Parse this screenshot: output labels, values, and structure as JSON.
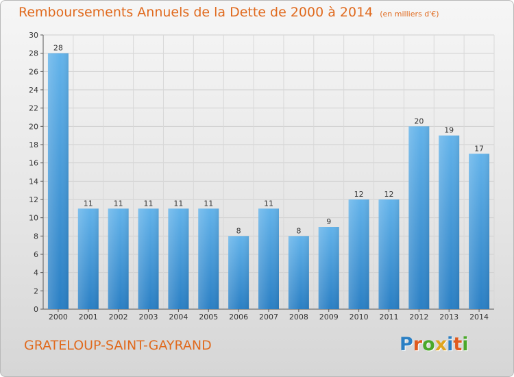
{
  "title": "Remboursements Annuels de la Dette de 2000 à 2014",
  "subtitle": "(en milliers d'€)",
  "commune": "GRATELOUP-SAINT-GAYRAND",
  "logo_letters": [
    "P",
    "r",
    "o",
    "x",
    "i",
    "t",
    "i"
  ],
  "colors": {
    "accent": "#e06a1e",
    "bar_light": "#63b3ea",
    "bar_dark": "#2a7fc4",
    "logo": [
      "#2a7fc4",
      "#e05a1e",
      "#4aa82a",
      "#e0a51e",
      "#2a7fc4",
      "#e05a1e",
      "#4aa82a"
    ]
  },
  "chart_data": {
    "type": "bar",
    "categories": [
      "2000",
      "2001",
      "2002",
      "2003",
      "2004",
      "2005",
      "2006",
      "2007",
      "2008",
      "2009",
      "2010",
      "2011",
      "2012",
      "2013",
      "2014"
    ],
    "values": [
      28,
      11,
      11,
      11,
      11,
      11,
      8,
      11,
      8,
      9,
      12,
      12,
      20,
      19,
      17
    ],
    "ylim": [
      0,
      30
    ],
    "yticks": [
      0,
      2,
      4,
      6,
      8,
      10,
      12,
      14,
      16,
      18,
      20,
      22,
      24,
      26,
      28,
      30
    ],
    "grid": true,
    "data_labels": true
  }
}
